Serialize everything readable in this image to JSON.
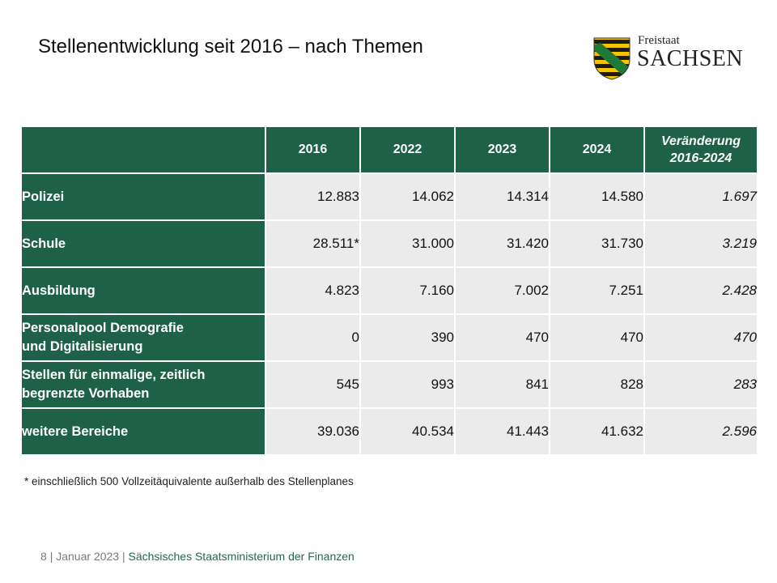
{
  "title": "Stellenentwicklung seit 2016 – nach Themen",
  "logo": {
    "small": "Freistaat",
    "big": "SACHSEN",
    "icon": "saxony-coat-of-arms-icon",
    "colors": {
      "gold": "#f5c400",
      "black": "#1a1a1a",
      "green": "#1f7a3a"
    }
  },
  "table": {
    "headers": [
      "",
      "2016",
      "2022",
      "2023",
      "2024",
      "Veränderung 2016-2024"
    ],
    "change_header": {
      "line1": "Veränderung",
      "line2": "2016-2024"
    },
    "rows": [
      {
        "label": "Polizei",
        "label_line2": "",
        "values": [
          "12.883",
          "14.062",
          "14.314",
          "14.580",
          "1.697"
        ]
      },
      {
        "label": "Schule",
        "label_line2": "",
        "values": [
          "28.511*",
          "31.000",
          "31.420",
          "31.730",
          "3.219"
        ]
      },
      {
        "label": "Ausbildung",
        "label_line2": "",
        "values": [
          "4.823",
          "7.160",
          "7.002",
          "7.251",
          "2.428"
        ]
      },
      {
        "label": "Personalpool Demografie",
        "label_line2": "und Digitalisierung",
        "values": [
          "0",
          "390",
          "470",
          "470",
          "470"
        ]
      },
      {
        "label": "Stellen für einmalige, zeitlich",
        "label_line2": "begrenzte Vorhaben",
        "values": [
          "545",
          "993",
          "841",
          "828",
          "283"
        ]
      },
      {
        "label": "weitere Bereiche",
        "label_line2": "",
        "values": [
          "39.036",
          "40.534",
          "41.443",
          "41.632",
          "2.596"
        ]
      }
    ]
  },
  "footnote": "* einschließlich 500 Vollzeitäquivalente außerhalb des Stellenplanes",
  "footer": {
    "page": "8",
    "date": "Januar 2023",
    "ministry": "Sächsisches Staatsministerium der Finanzen"
  },
  "colors": {
    "header_bg": "#1f6148",
    "cell_bg": "#ebebeb",
    "footer_green": "#1f6b45"
  }
}
